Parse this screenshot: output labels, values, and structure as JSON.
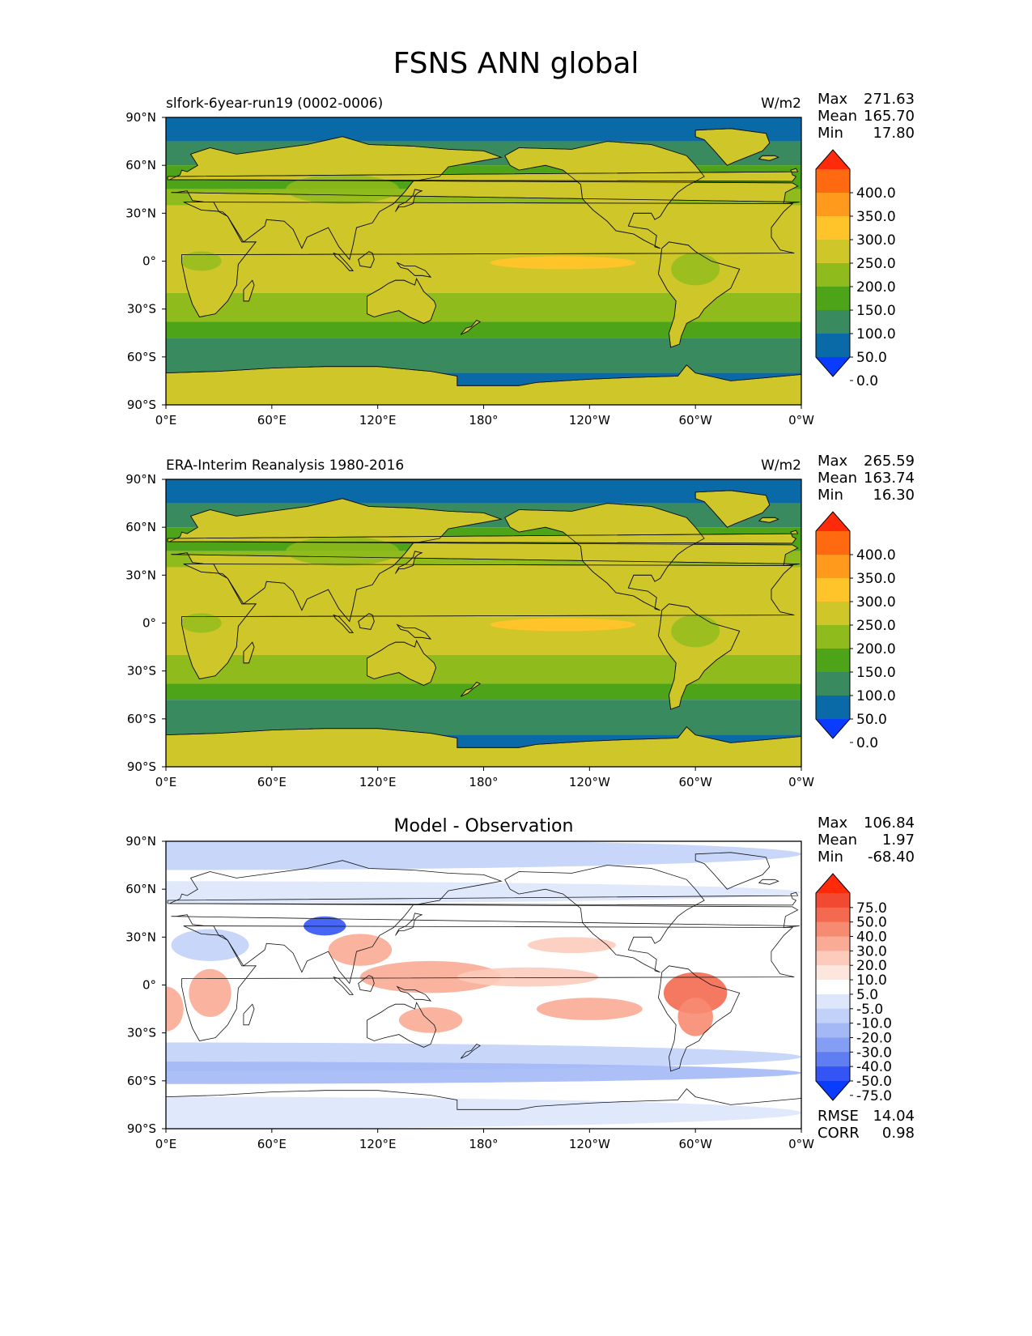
{
  "figure": {
    "title": "FSNS ANN global",
    "x_ticks": [
      "0°E",
      "60°E",
      "120°E",
      "180°",
      "120°W",
      "60°W",
      "0°W"
    ],
    "y_ticks": [
      "90°N",
      "60°N",
      "30°N",
      "0°",
      "30°S",
      "60°S",
      "90°S"
    ]
  },
  "panels": [
    {
      "id": "model",
      "title_left": "slfork-6year-run19 (0002-0006)",
      "title_center": "",
      "units": "W/m2",
      "stats": [
        {
          "label": "Max",
          "value": "271.63"
        },
        {
          "label": "Mean",
          "value": "165.70"
        },
        {
          "label": "Min",
          "value": "17.80"
        }
      ],
      "colorbar": {
        "labels": [
          "400.0",
          "350.0",
          "300.0",
          "250.0",
          "200.0",
          "150.0",
          "100.0",
          "50.0",
          "0.0"
        ],
        "colors": [
          "#ff2a0a",
          "#ff6a10",
          "#ff9a1c",
          "#ffc42a",
          "#cfc62a",
          "#8fbb1c",
          "#4ea418",
          "#3a8a60",
          "#0a6aa8",
          "#0a3cff"
        ]
      },
      "footer": []
    },
    {
      "id": "obs",
      "title_left": "ERA-Interim Reanalysis 1980-2016",
      "title_center": "",
      "units": "W/m2",
      "stats": [
        {
          "label": "Max",
          "value": "265.59"
        },
        {
          "label": "Mean",
          "value": "163.74"
        },
        {
          "label": "Min",
          "value": "16.30"
        }
      ],
      "colorbar": {
        "labels": [
          "400.0",
          "350.0",
          "300.0",
          "250.0",
          "200.0",
          "150.0",
          "100.0",
          "50.0",
          "0.0"
        ],
        "colors": [
          "#ff2a0a",
          "#ff6a10",
          "#ff9a1c",
          "#ffc42a",
          "#cfc62a",
          "#8fbb1c",
          "#4ea418",
          "#3a8a60",
          "#0a6aa8",
          "#0a3cff"
        ]
      },
      "footer": []
    },
    {
      "id": "diff",
      "title_left": "",
      "title_center": "Model - Observation",
      "units": "",
      "stats": [
        {
          "label": "Max",
          "value": "106.84"
        },
        {
          "label": "Mean",
          "value": "1.97"
        },
        {
          "label": "Min",
          "value": "-68.40"
        }
      ],
      "colorbar": {
        "labels": [
          "75.0",
          "50.0",
          "40.0",
          "30.0",
          "20.0",
          "10.0",
          "5.0",
          "-5.0",
          "-10.0",
          "-20.0",
          "-30.0",
          "-40.0",
          "-50.0",
          "-75.0"
        ],
        "colors": [
          "#ff2a0a",
          "#f24a32",
          "#f46a50",
          "#f78b72",
          "#faab95",
          "#fccbbb",
          "#fde6dd",
          "#ffffff",
          "#dde6fb",
          "#c1d1f8",
          "#a3b8f5",
          "#839ef2",
          "#5f7ef2",
          "#3355f5",
          "#0a3cff"
        ]
      },
      "footer": [
        {
          "label": "RMSE",
          "value": "14.04"
        },
        {
          "label": "CORR",
          "value": "0.98"
        }
      ]
    }
  ]
}
